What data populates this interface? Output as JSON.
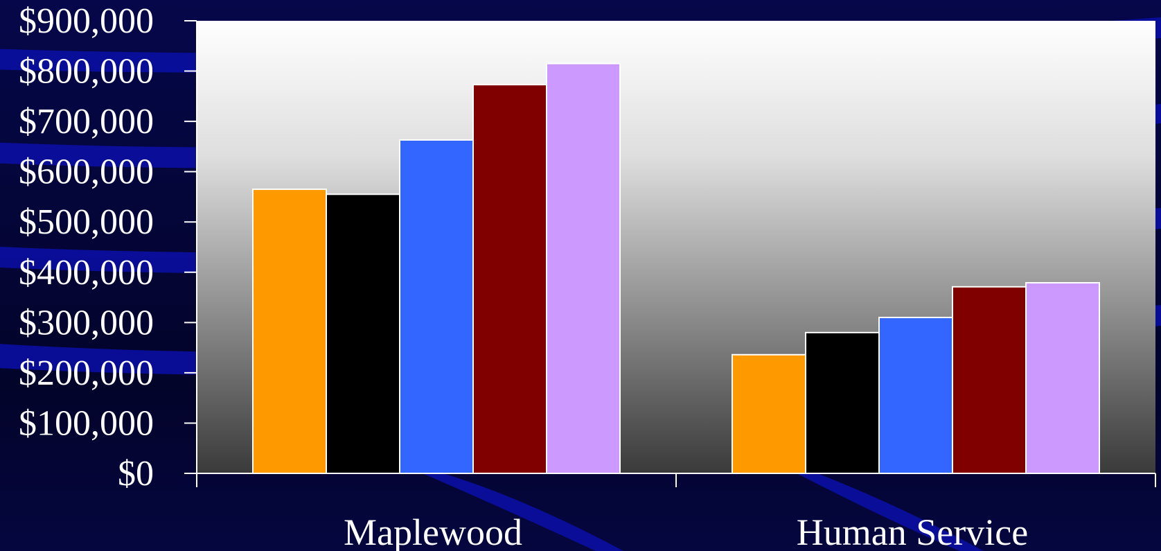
{
  "chart_data": {
    "type": "bar",
    "categories": [
      "Maplewood",
      "Human Service"
    ],
    "series": [
      {
        "color": "#ff9900",
        "values": [
          565000,
          236000
        ]
      },
      {
        "color": "#000000",
        "values": [
          555000,
          280000
        ]
      },
      {
        "color": "#3366ff",
        "values": [
          663000,
          310000
        ]
      },
      {
        "color": "#800000",
        "values": [
          773000,
          371000
        ]
      },
      {
        "color": "#cc99ff",
        "values": [
          815000,
          379000
        ]
      }
    ],
    "yticks": [
      "$0",
      "$100,000",
      "$200,000",
      "$300,000",
      "$400,000",
      "$500,000",
      "$600,000",
      "$700,000",
      "$800,000",
      "$900,000"
    ],
    "ylim": [
      0,
      900000
    ],
    "grid": false,
    "legend": "none"
  },
  "colors": {
    "background": "#05063f",
    "swoosh": "#0a0fa8",
    "plot_top": "#ffffff",
    "plot_bottom": "#3a3a3a",
    "axis": "#ffffff",
    "bar_outline": "#ffffff"
  }
}
